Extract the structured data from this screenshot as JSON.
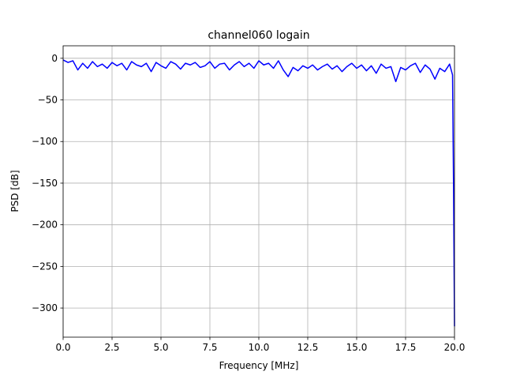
{
  "chart_data": {
    "type": "line",
    "title": "channel060 logain",
    "xlabel": "Frequency [MHz]",
    "ylabel": "PSD [dB]",
    "xlim": [
      0,
      20
    ],
    "ylim": [
      -335,
      15
    ],
    "xticks": [
      0,
      2.5,
      5,
      7.5,
      10,
      12.5,
      15,
      17.5,
      20
    ],
    "xtick_labels": [
      "0.0",
      "2.5",
      "5.0",
      "7.5",
      "10.0",
      "12.5",
      "15.0",
      "17.5",
      "20.0"
    ],
    "yticks": [
      0,
      -50,
      -100,
      -150,
      -200,
      -250,
      -300
    ],
    "ytick_labels": [
      "0",
      "−50",
      "−100",
      "−150",
      "−200",
      "−250",
      "−300"
    ],
    "grid": true,
    "line_color": "#0000ff",
    "series": [
      {
        "x": [
          0,
          0.25,
          0.5,
          0.75,
          1.0,
          1.25,
          1.5,
          1.75,
          2.0,
          2.25,
          2.5,
          2.75,
          3.0,
          3.25,
          3.5,
          3.75,
          4.0,
          4.25,
          4.5,
          4.75,
          5.0,
          5.25,
          5.5,
          5.75,
          6.0,
          6.25,
          6.5,
          6.75,
          7.0,
          7.25,
          7.5,
          7.75,
          8.0,
          8.25,
          8.5,
          8.75,
          9.0,
          9.25,
          9.5,
          9.75,
          10.0,
          10.25,
          10.5,
          10.75,
          11.0,
          11.25,
          11.5,
          11.75,
          12.0,
          12.25,
          12.5,
          12.75,
          13.0,
          13.25,
          13.5,
          13.75,
          14.0,
          14.25,
          14.5,
          14.75,
          15.0,
          15.25,
          15.5,
          15.75,
          16.0,
          16.25,
          16.5,
          16.75,
          17.0,
          17.25,
          17.5,
          17.75,
          18.0,
          18.25,
          18.5,
          18.75,
          19.0,
          19.25,
          19.5,
          19.75,
          19.9,
          19.95,
          20.0
        ],
        "y": [
          -2,
          -5,
          -3,
          -14,
          -6,
          -12,
          -4,
          -10,
          -7,
          -12,
          -5,
          -9,
          -6,
          -14,
          -4,
          -8,
          -10,
          -6,
          -16,
          -5,
          -9,
          -12,
          -4,
          -7,
          -13,
          -6,
          -8,
          -5,
          -11,
          -9,
          -4,
          -12,
          -7,
          -6,
          -14,
          -8,
          -4,
          -10,
          -6,
          -12,
          -3,
          -8,
          -6,
          -12,
          -3,
          -14,
          -22,
          -11,
          -15,
          -9,
          -12,
          -8,
          -14,
          -10,
          -7,
          -13,
          -9,
          -16,
          -10,
          -6,
          -12,
          -8,
          -15,
          -9,
          -18,
          -7,
          -12,
          -10,
          -28,
          -11,
          -14,
          -9,
          -6,
          -17,
          -8,
          -13,
          -25,
          -12,
          -16,
          -7,
          -20,
          -150,
          -322
        ]
      }
    ]
  }
}
